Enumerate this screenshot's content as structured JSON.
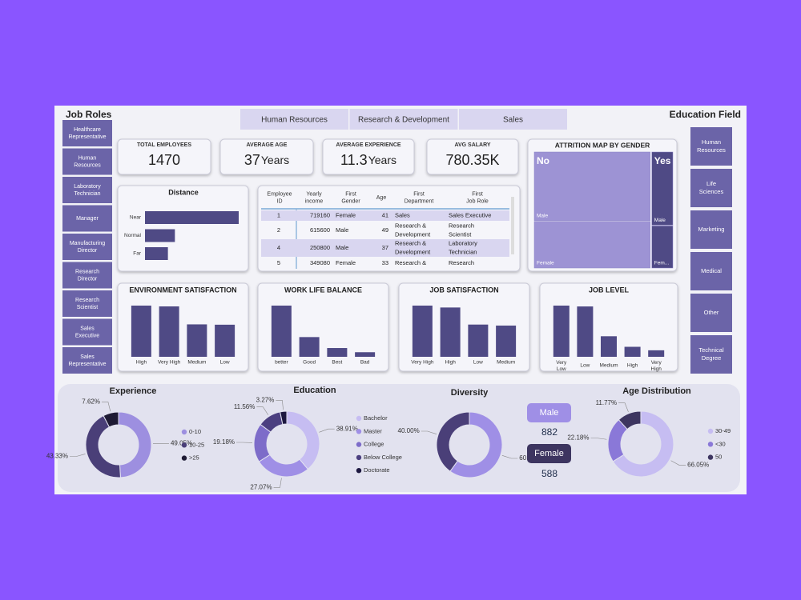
{
  "job_roles": {
    "title": "Job Roles",
    "items": [
      "Healthcare Representative",
      "Human Resources",
      "Laboratory Technician",
      "Manager",
      "Manufacturing Director",
      "Research Director",
      "Research Scientist",
      "Sales Executive",
      "Sales Representative"
    ]
  },
  "departments": [
    "Human Resources",
    "Research & Development",
    "Sales"
  ],
  "education_field": {
    "title": "Education Field",
    "items": [
      "Human Resources",
      "Life Sciences",
      "Marketing",
      "Medical",
      "Other",
      "Technical Degree"
    ]
  },
  "kpis": [
    {
      "label": "TOTAL EMPLOYEES",
      "value": 1470
    },
    {
      "label": "AVERAGE AGE",
      "value": 37,
      "unit": "Years"
    },
    {
      "label": "AVERAGE EXPERIENCE",
      "value": 11.3,
      "unit": "Years"
    },
    {
      "label": "AVG SALARY",
      "value": "780.35K"
    }
  ],
  "table": {
    "columns": [
      "Employee ID",
      "Yearly income",
      "First Gender",
      "Age",
      "First Department",
      "First Job Role"
    ],
    "rows": [
      [
        1,
        719160,
        "Female",
        41,
        "Sales",
        "Sales Executive"
      ],
      [
        2,
        615600,
        "Male",
        49,
        "Research & Development",
        "Research Scientist"
      ],
      [
        4,
        250800,
        "Male",
        37,
        "Research & Development",
        "Laboratory Technician"
      ],
      [
        5,
        349080,
        "Female",
        33,
        "Research & Development",
        "Research Scientist"
      ]
    ]
  },
  "diversity_counts": [
    {
      "label": "Male",
      "value": 882
    },
    {
      "label": "Female",
      "value": 588
    }
  ],
  "chart_data": [
    {
      "type": "bar",
      "orientation": "horizontal",
      "title": "Distance",
      "categories": [
        "Near",
        "Normal",
        "Far"
      ],
      "values": [
        940,
        300,
        230
      ],
      "color": "#4f4a85"
    },
    {
      "type": "bar",
      "title": "ENVIRONMENT SATISFACTION",
      "categories": [
        "High",
        "Very High",
        "Medium",
        "Low"
      ],
      "values": [
        453,
        446,
        287,
        284
      ],
      "color": "#4f4a85"
    },
    {
      "type": "bar",
      "title": "WORK LIFE BALANCE",
      "categories": [
        "better",
        "Good",
        "Best",
        "Bad"
      ],
      "values": [
        893,
        344,
        153,
        80
      ],
      "color": "#4f4a85"
    },
    {
      "type": "bar",
      "title": "JOB SATISFACTION",
      "categories": [
        "Very High",
        "High",
        "Low",
        "Medium"
      ],
      "values": [
        459,
        442,
        289,
        280
      ],
      "color": "#4f4a85"
    },
    {
      "type": "bar",
      "title": "JOB LEVEL",
      "categories": [
        "Very Low",
        "Low",
        "Medium",
        "High",
        "Very High"
      ],
      "values": [
        543,
        534,
        218,
        106,
        69
      ],
      "color": "#4f4a85"
    },
    {
      "type": "treemap",
      "title": "ATTRITION MAP BY GENDER",
      "groups": [
        {
          "name": "No",
          "color": "#9d93d4",
          "children": [
            {
              "name": "Male",
              "value": 732
            },
            {
              "name": "Female",
              "value": 501
            }
          ]
        },
        {
          "name": "Yes",
          "color": "#4f4a85",
          "children": [
            {
              "name": "Male",
              "value": 150
            },
            {
              "name": "Fem...",
              "value": 87
            }
          ]
        }
      ]
    },
    {
      "type": "pie",
      "title": "Experience",
      "legend": true,
      "categories": [
        "0-10",
        "10-25",
        ">25"
      ],
      "values": [
        49.05,
        43.33,
        7.62
      ],
      "value_labels": [
        "49.05%",
        "43.33%",
        "7.62%"
      ],
      "colors": [
        "#9d8fe0",
        "#4a3f78",
        "#1e1a33"
      ]
    },
    {
      "type": "pie",
      "title": "Education",
      "legend": true,
      "categories": [
        "Bachelor",
        "Master",
        "College",
        "Below College",
        "Doctorate"
      ],
      "values": [
        38.91,
        27.07,
        19.18,
        11.56,
        3.27
      ],
      "value_labels": [
        "38.91%",
        "27.07%",
        "19.18%",
        "11.56%",
        "3.27%"
      ],
      "colors": [
        "#c6bdf2",
        "#9f8fe6",
        "#7d6cc9",
        "#4b3f80",
        "#1d1840"
      ]
    },
    {
      "type": "pie",
      "title": "Diversity",
      "legend": false,
      "categories": [
        "Male",
        "Female"
      ],
      "values": [
        60.0,
        40.0
      ],
      "value_labels": [
        "60.00%",
        "40.00%"
      ],
      "colors": [
        "#9f8fe6",
        "#4a3f78"
      ]
    },
    {
      "type": "pie",
      "title": "Age Distribution",
      "legend": true,
      "categories": [
        "30-49",
        "<30",
        "50"
      ],
      "values": [
        66.05,
        22.18,
        11.77
      ],
      "value_labels": [
        "66.05%",
        "22.18%",
        "11.77%"
      ],
      "colors": [
        "#c6bdf2",
        "#8a78d8",
        "#3d3560"
      ]
    }
  ]
}
